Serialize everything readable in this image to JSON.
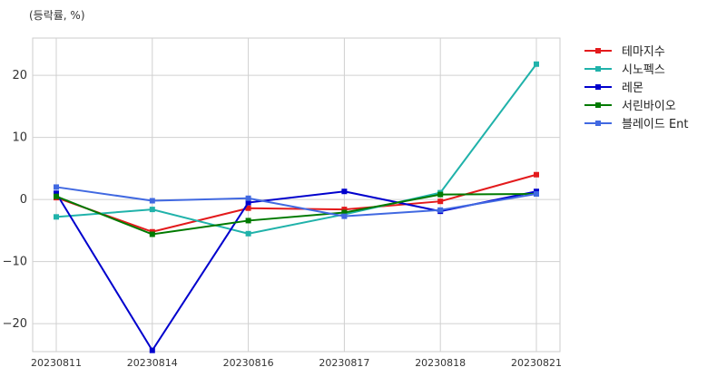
{
  "unit_label": "(등락률, %)",
  "chart_data": {
    "type": "line",
    "categories": [
      "20230811",
      "20230814",
      "20230816",
      "20230817",
      "20230818",
      "20230821"
    ],
    "ylim": [
      -24.5,
      26
    ],
    "yticks": [
      -20,
      -10,
      0,
      10,
      20
    ],
    "grid": true,
    "legend_position": "outside-right-top",
    "series": [
      {
        "name": "테마지수",
        "color": "#e31a1c",
        "values": [
          0.3,
          -5.2,
          -1.4,
          -1.6,
          -0.3,
          4.0
        ]
      },
      {
        "name": "시노펙스",
        "color": "#20b2aa",
        "values": [
          -2.8,
          -1.6,
          -5.5,
          -2.4,
          1.1,
          21.8
        ]
      },
      {
        "name": "레몬",
        "color": "#0000cd",
        "values": [
          1.0,
          -24.3,
          -0.5,
          1.3,
          -1.9,
          1.3
        ]
      },
      {
        "name": "서린바이오",
        "color": "#007a00",
        "values": [
          0.5,
          -5.6,
          -3.4,
          -2.1,
          0.8,
          0.9
        ]
      },
      {
        "name": "블레이드 Ent",
        "color": "#4169e1",
        "values": [
          2.0,
          -0.2,
          0.2,
          -2.7,
          -1.7,
          0.9
        ]
      }
    ]
  }
}
